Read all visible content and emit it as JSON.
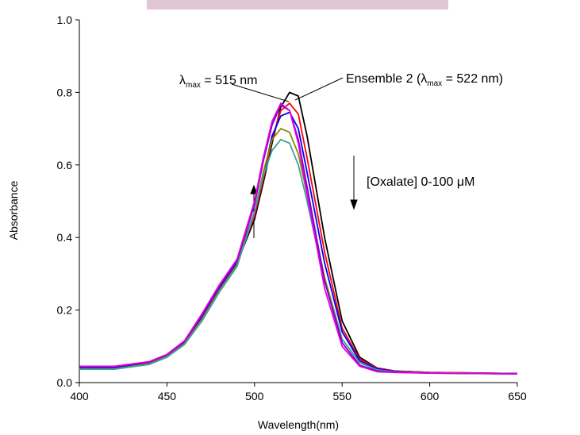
{
  "chart_data": {
    "type": "line",
    "x_label": "Wavelength(nm)",
    "y_label": "Absorbance",
    "x": [
      400,
      420,
      440,
      450,
      460,
      470,
      480,
      490,
      500,
      505,
      510,
      515,
      520,
      525,
      530,
      540,
      550,
      560,
      570,
      580,
      600,
      650
    ],
    "series": [
      {
        "color": "#000000",
        "values": [
          0.04,
          0.04,
          0.055,
          0.075,
          0.11,
          0.18,
          0.26,
          0.33,
          0.45,
          0.55,
          0.66,
          0.76,
          0.8,
          0.79,
          0.68,
          0.4,
          0.17,
          0.07,
          0.04,
          0.032,
          0.028,
          0.025
        ]
      },
      {
        "color": "#ff0000",
        "values": [
          0.04,
          0.04,
          0.055,
          0.075,
          0.11,
          0.18,
          0.26,
          0.33,
          0.46,
          0.56,
          0.67,
          0.75,
          0.77,
          0.74,
          0.62,
          0.36,
          0.15,
          0.065,
          0.04,
          0.032,
          0.028,
          0.025
        ]
      },
      {
        "color": "#0000ff",
        "values": [
          0.04,
          0.04,
          0.055,
          0.075,
          0.11,
          0.18,
          0.26,
          0.33,
          0.47,
          0.57,
          0.68,
          0.735,
          0.745,
          0.7,
          0.58,
          0.33,
          0.14,
          0.06,
          0.038,
          0.031,
          0.027,
          0.025
        ]
      },
      {
        "color": "#8a8a00",
        "values": [
          0.038,
          0.038,
          0.052,
          0.072,
          0.107,
          0.175,
          0.255,
          0.325,
          0.47,
          0.58,
          0.67,
          0.7,
          0.69,
          0.63,
          0.52,
          0.29,
          0.12,
          0.055,
          0.035,
          0.03,
          0.027,
          0.024
        ]
      },
      {
        "color": "#3fa0a0",
        "values": [
          0.037,
          0.037,
          0.05,
          0.07,
          0.105,
          0.17,
          0.25,
          0.32,
          0.47,
          0.57,
          0.64,
          0.67,
          0.66,
          0.6,
          0.5,
          0.28,
          0.12,
          0.055,
          0.035,
          0.03,
          0.027,
          0.024
        ]
      },
      {
        "color": "#8000c0",
        "values": [
          0.044,
          0.044,
          0.057,
          0.077,
          0.113,
          0.185,
          0.265,
          0.335,
          0.49,
          0.61,
          0.71,
          0.765,
          0.75,
          0.67,
          0.54,
          0.28,
          0.11,
          0.048,
          0.032,
          0.029,
          0.026,
          0.024
        ]
      },
      {
        "color": "#e000e0",
        "values": [
          0.045,
          0.045,
          0.058,
          0.078,
          0.115,
          0.19,
          0.27,
          0.34,
          0.5,
          0.62,
          0.72,
          0.77,
          0.75,
          0.66,
          0.52,
          0.26,
          0.1,
          0.045,
          0.03,
          0.028,
          0.026,
          0.024
        ]
      }
    ],
    "xlim": [
      400,
      650
    ],
    "xticks": [
      400,
      450,
      500,
      550,
      600,
      650
    ],
    "ylim": [
      0,
      1
    ],
    "yticks": [
      {
        "value": 0,
        "label": "0.0"
      },
      0.2,
      0.4,
      0.6,
      0.8,
      {
        "value": 1,
        "label": "1.0"
      }
    ],
    "annotations": [
      {
        "text": [
          "λ",
          "max",
          " = 515 nm"
        ]
      },
      {
        "text": [
          "Ensemble 2 (λ",
          "max",
          " = 522 nm)"
        ]
      },
      {
        "text": [
          "[Oxalate] 0-100 ",
          "μ",
          "M"
        ]
      }
    ]
  }
}
